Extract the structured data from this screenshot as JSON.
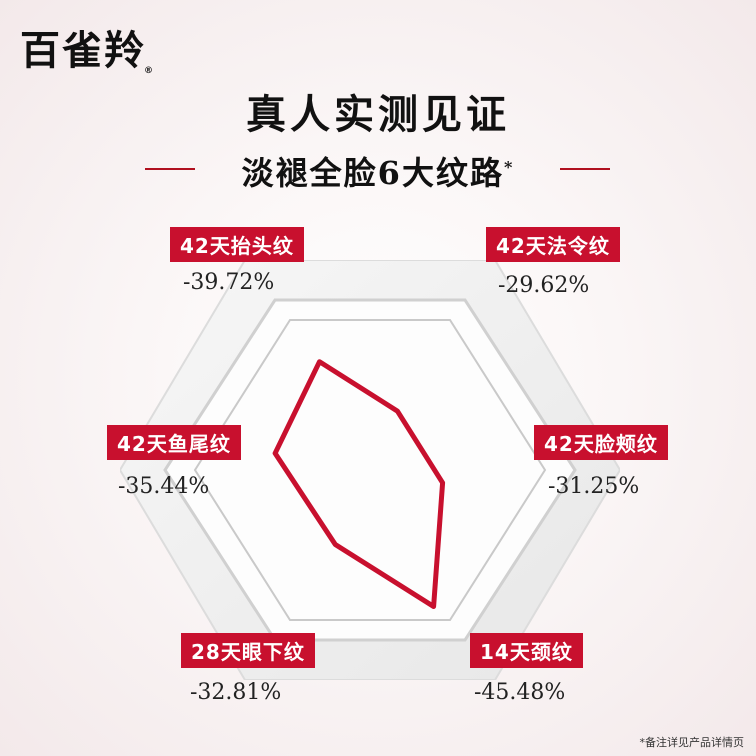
{
  "brand": {
    "name": "百雀羚",
    "mark": "®"
  },
  "title": "真人实测见证",
  "subtitle": "淡褪全脸6大纹路",
  "subtitle_mark": "*",
  "footnote": "*备注详见产品详情页",
  "colors": {
    "accent": "#c8102e"
  },
  "chart_data": {
    "type": "radar",
    "title": "淡褪全脸6大纹路",
    "axes": [
      "42天抬头纹",
      "42天法令纹",
      "42天脸颊纹",
      "14天颈纹",
      "28天眼下纹",
      "42天鱼尾纹"
    ],
    "values": [
      -39.72,
      -29.62,
      -31.25,
      -45.48,
      -32.81,
      -35.44
    ],
    "value_labels": [
      "-39.72%",
      "-29.62%",
      "-31.25%",
      "-45.48%",
      "-32.81%",
      "-35.44%"
    ],
    "unit": "%"
  }
}
